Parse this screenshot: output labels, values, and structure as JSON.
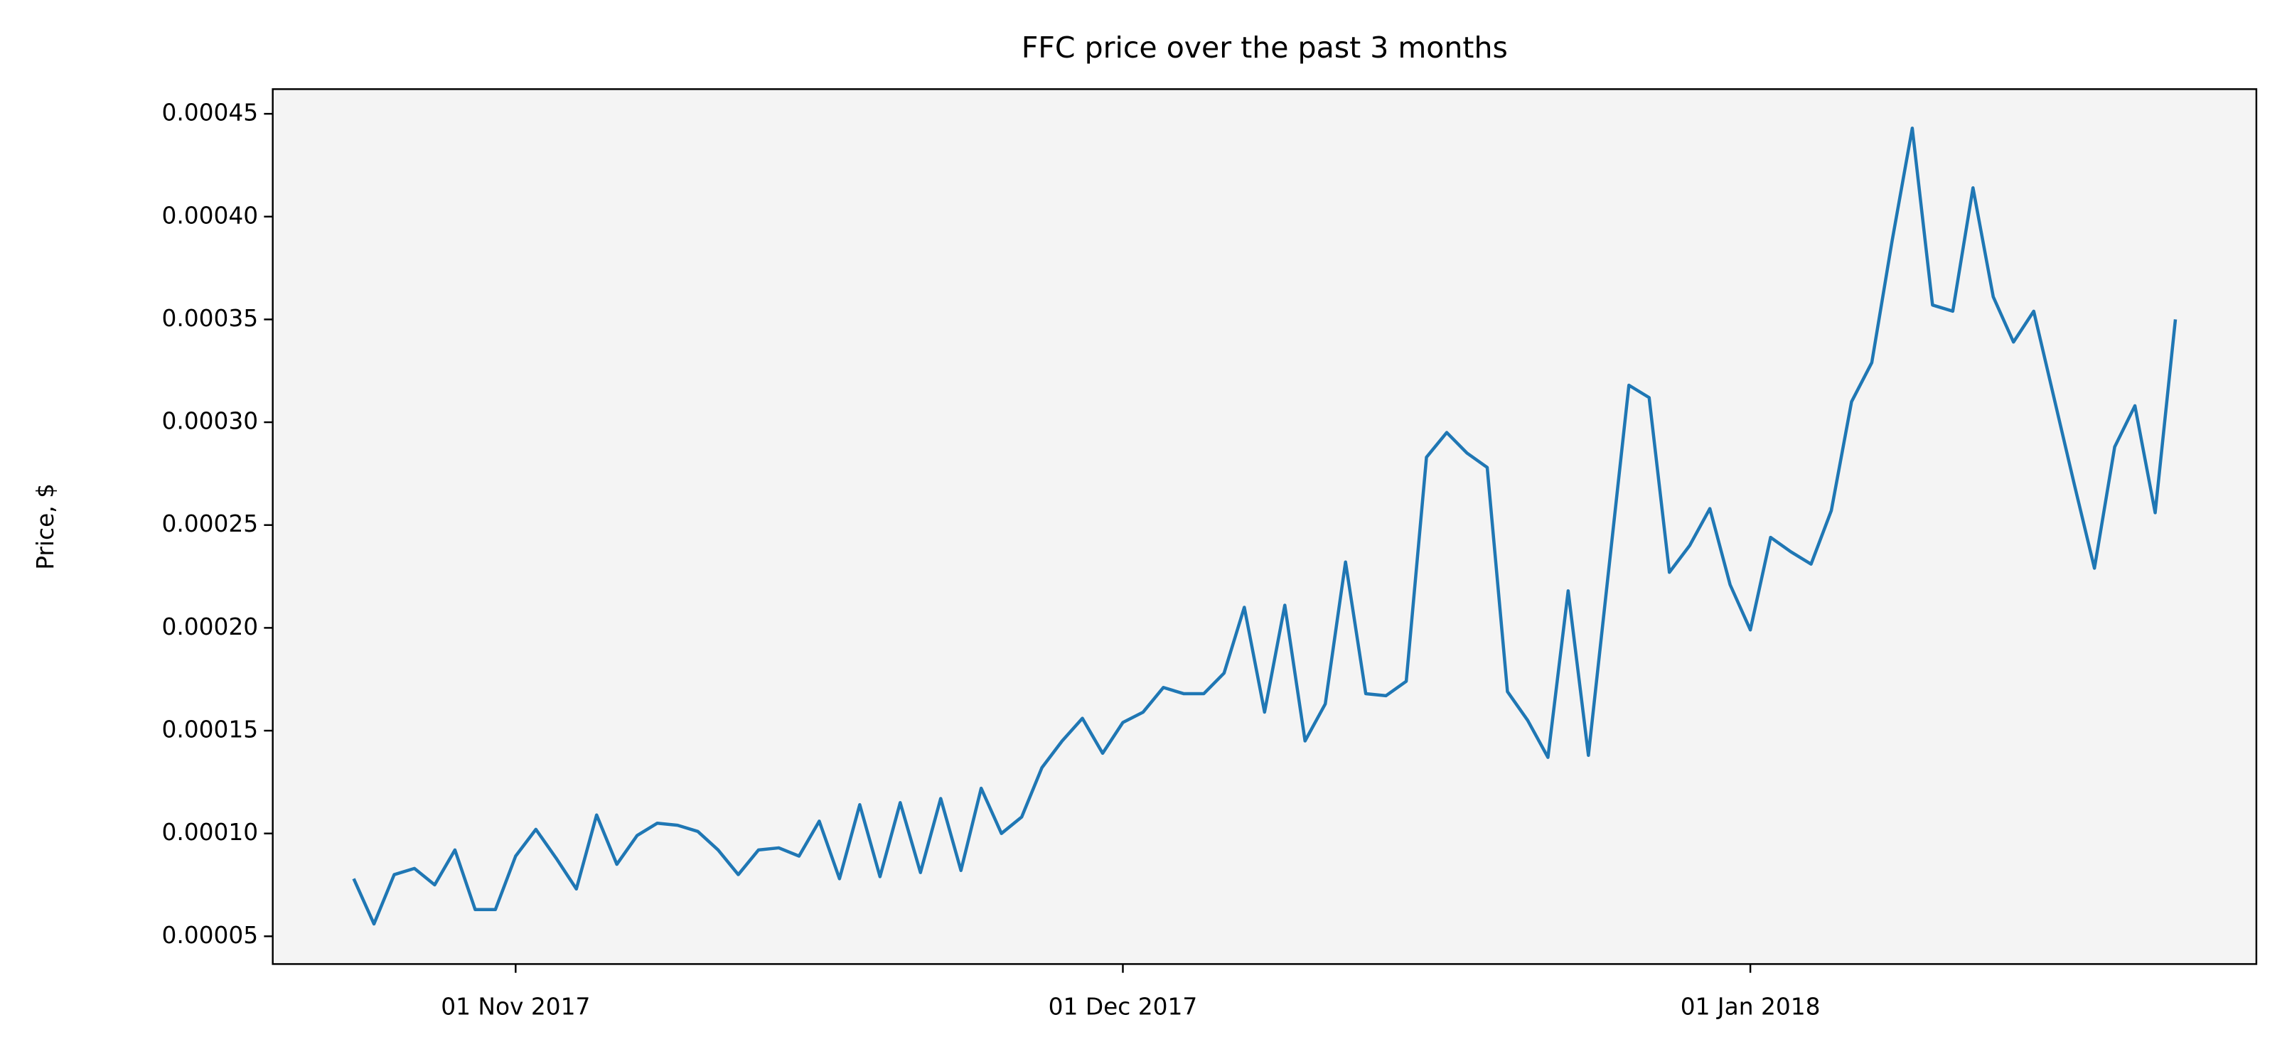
{
  "chart_data": {
    "type": "line",
    "title": "FFC price over the past 3 months",
    "y_label": "Price, $",
    "x": [
      "2017-10-24",
      "2017-10-25",
      "2017-10-26",
      "2017-10-27",
      "2017-10-28",
      "2017-10-29",
      "2017-10-30",
      "2017-10-31",
      "2017-11-01",
      "2017-11-02",
      "2017-11-03",
      "2017-11-04",
      "2017-11-05",
      "2017-11-06",
      "2017-11-07",
      "2017-11-08",
      "2017-11-09",
      "2017-11-10",
      "2017-11-11",
      "2017-11-12",
      "2017-11-13",
      "2017-11-14",
      "2017-11-15",
      "2017-11-16",
      "2017-11-17",
      "2017-11-18",
      "2017-11-19",
      "2017-11-20",
      "2017-11-21",
      "2017-11-22",
      "2017-11-23",
      "2017-11-24",
      "2017-11-25",
      "2017-11-26",
      "2017-11-27",
      "2017-11-28",
      "2017-11-29",
      "2017-11-30",
      "2017-12-01",
      "2017-12-02",
      "2017-12-03",
      "2017-12-04",
      "2017-12-05",
      "2017-12-06",
      "2017-12-07",
      "2017-12-08",
      "2017-12-09",
      "2017-12-10",
      "2017-12-11",
      "2017-12-12",
      "2017-12-13",
      "2017-12-14",
      "2017-12-15",
      "2017-12-16",
      "2017-12-17",
      "2017-12-18",
      "2017-12-19",
      "2017-12-20",
      "2017-12-21",
      "2017-12-22",
      "2017-12-23",
      "2017-12-24",
      "2017-12-26",
      "2017-12-27",
      "2017-12-28",
      "2017-12-29",
      "2017-12-30",
      "2017-12-31",
      "2018-01-01",
      "2018-01-02",
      "2018-01-03",
      "2018-01-04",
      "2018-01-05",
      "2018-01-06",
      "2018-01-07",
      "2018-01-08",
      "2018-01-09",
      "2018-01-10",
      "2018-01-11",
      "2018-01-12",
      "2018-01-13",
      "2018-01-14",
      "2018-01-15",
      "2018-01-16",
      "2018-01-17",
      "2018-01-18",
      "2018-01-19",
      "2018-01-20",
      "2018-01-21",
      "2018-01-22"
    ],
    "series": [
      {
        "name": "FFC",
        "color": "#1f77b4",
        "values": [
          7.8e-05,
          5.6e-05,
          8e-05,
          8.3e-05,
          7.5e-05,
          9.2e-05,
          6.3e-05,
          6.3e-05,
          8.9e-05,
          0.000102,
          8.8e-05,
          7.3e-05,
          0.000109,
          8.5e-05,
          9.9e-05,
          0.000105,
          0.000104,
          0.000101,
          9.2e-05,
          8e-05,
          9.2e-05,
          9.3e-05,
          8.9e-05,
          0.000106,
          7.8e-05,
          0.000114,
          7.9e-05,
          0.000115,
          8.1e-05,
          0.000117,
          8.2e-05,
          0.000122,
          0.0001,
          0.000108,
          0.000132,
          0.000145,
          0.000156,
          0.000139,
          0.000154,
          0.000159,
          0.000171,
          0.000168,
          0.000168,
          0.000178,
          0.00021,
          0.000159,
          0.000211,
          0.000145,
          0.000163,
          0.000232,
          0.000168,
          0.000167,
          0.000174,
          0.000283,
          0.000295,
          0.000285,
          0.000278,
          0.000169,
          0.000155,
          0.000137,
          0.000218,
          0.000138,
          0.000318,
          0.000312,
          0.000227,
          0.00024,
          0.000258,
          0.000221,
          0.000199,
          0.000244,
          0.000237,
          0.000231,
          0.000257,
          0.00031,
          0.000329,
          0.000388,
          0.000443,
          0.000357,
          0.000354,
          0.000414,
          0.000361,
          0.000339,
          0.000354,
          0.000312,
          0.00027,
          0.000229,
          0.000288,
          0.000308,
          0.000256,
          0.00035
        ]
      }
    ],
    "xlim": [
      "2017-10-20",
      "2018-01-26"
    ],
    "xticks": [
      {
        "value": "2017-11-01",
        "label": "01 Nov 2017"
      },
      {
        "value": "2017-12-01",
        "label": "01 Dec 2017"
      },
      {
        "value": "2018-01-01",
        "label": "01 Jan 2018"
      }
    ],
    "ylim": [
      3.65e-05,
      0.000462
    ],
    "yticks": [
      {
        "value": 5e-05,
        "label": "0.00005"
      },
      {
        "value": 0.0001,
        "label": "0.00010"
      },
      {
        "value": 0.00015,
        "label": "0.00015"
      },
      {
        "value": 0.0002,
        "label": "0.00020"
      },
      {
        "value": 0.00025,
        "label": "0.00025"
      },
      {
        "value": 0.0003,
        "label": "0.00030"
      },
      {
        "value": 0.00035,
        "label": "0.00035"
      },
      {
        "value": 0.0004,
        "label": "0.00040"
      },
      {
        "value": 0.00045,
        "label": "0.00045"
      }
    ],
    "grid": false,
    "background": "#f4f4f4"
  }
}
